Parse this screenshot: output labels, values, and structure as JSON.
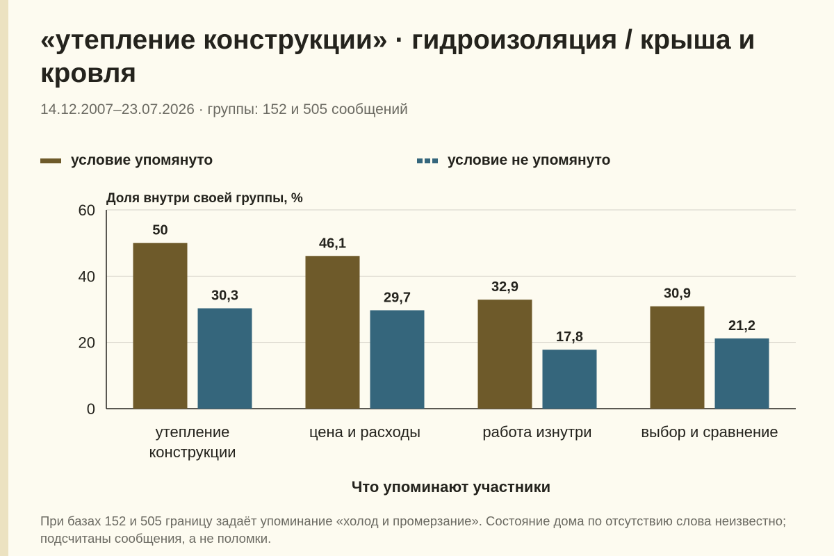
{
  "header": {
    "title": "«утепление конструкции» · гидроизоляция / крыша и кровля",
    "subtitle": "14.12.2007–23.07.2026 · группы: 152 и 505 сообщений"
  },
  "legend": [
    {
      "label": "условие упомянуто",
      "color": "#6e5a2a",
      "style": "solid"
    },
    {
      "label": "условие не упомянуто",
      "color": "#35667c",
      "style": "dashed"
    }
  ],
  "footnote": "При базах 152 и 505 границу задаёт упоминание «холод и промерзание». Состояние дома по отсутствию слова неизвестно; подсчитаны сообщения, а не поломки.",
  "chart_data": {
    "type": "bar",
    "title": "",
    "ylabel": "Доля внутри своей группы, %",
    "xlabel": "Что упоминают участники",
    "categories": [
      [
        "утепление",
        "конструкции"
      ],
      [
        "цена и расходы"
      ],
      [
        "работа изнутри"
      ],
      [
        "выбор и сравнение"
      ]
    ],
    "series": [
      {
        "name": "условие упомянуто",
        "values": [
          50,
          46.1,
          32.9,
          30.9
        ],
        "labels": [
          "50",
          "46,1",
          "32,9",
          "30,9"
        ],
        "color": "#6e5a2a"
      },
      {
        "name": "условие не упомянуто",
        "values": [
          30.3,
          29.7,
          17.8,
          21.2
        ],
        "labels": [
          "30,3",
          "29,7",
          "17,8",
          "21,2"
        ],
        "color": "#35667c"
      }
    ],
    "ylim": [
      0,
      60
    ],
    "yticks": [
      0,
      20,
      40,
      60
    ],
    "grid": true,
    "legend_position": "top"
  }
}
